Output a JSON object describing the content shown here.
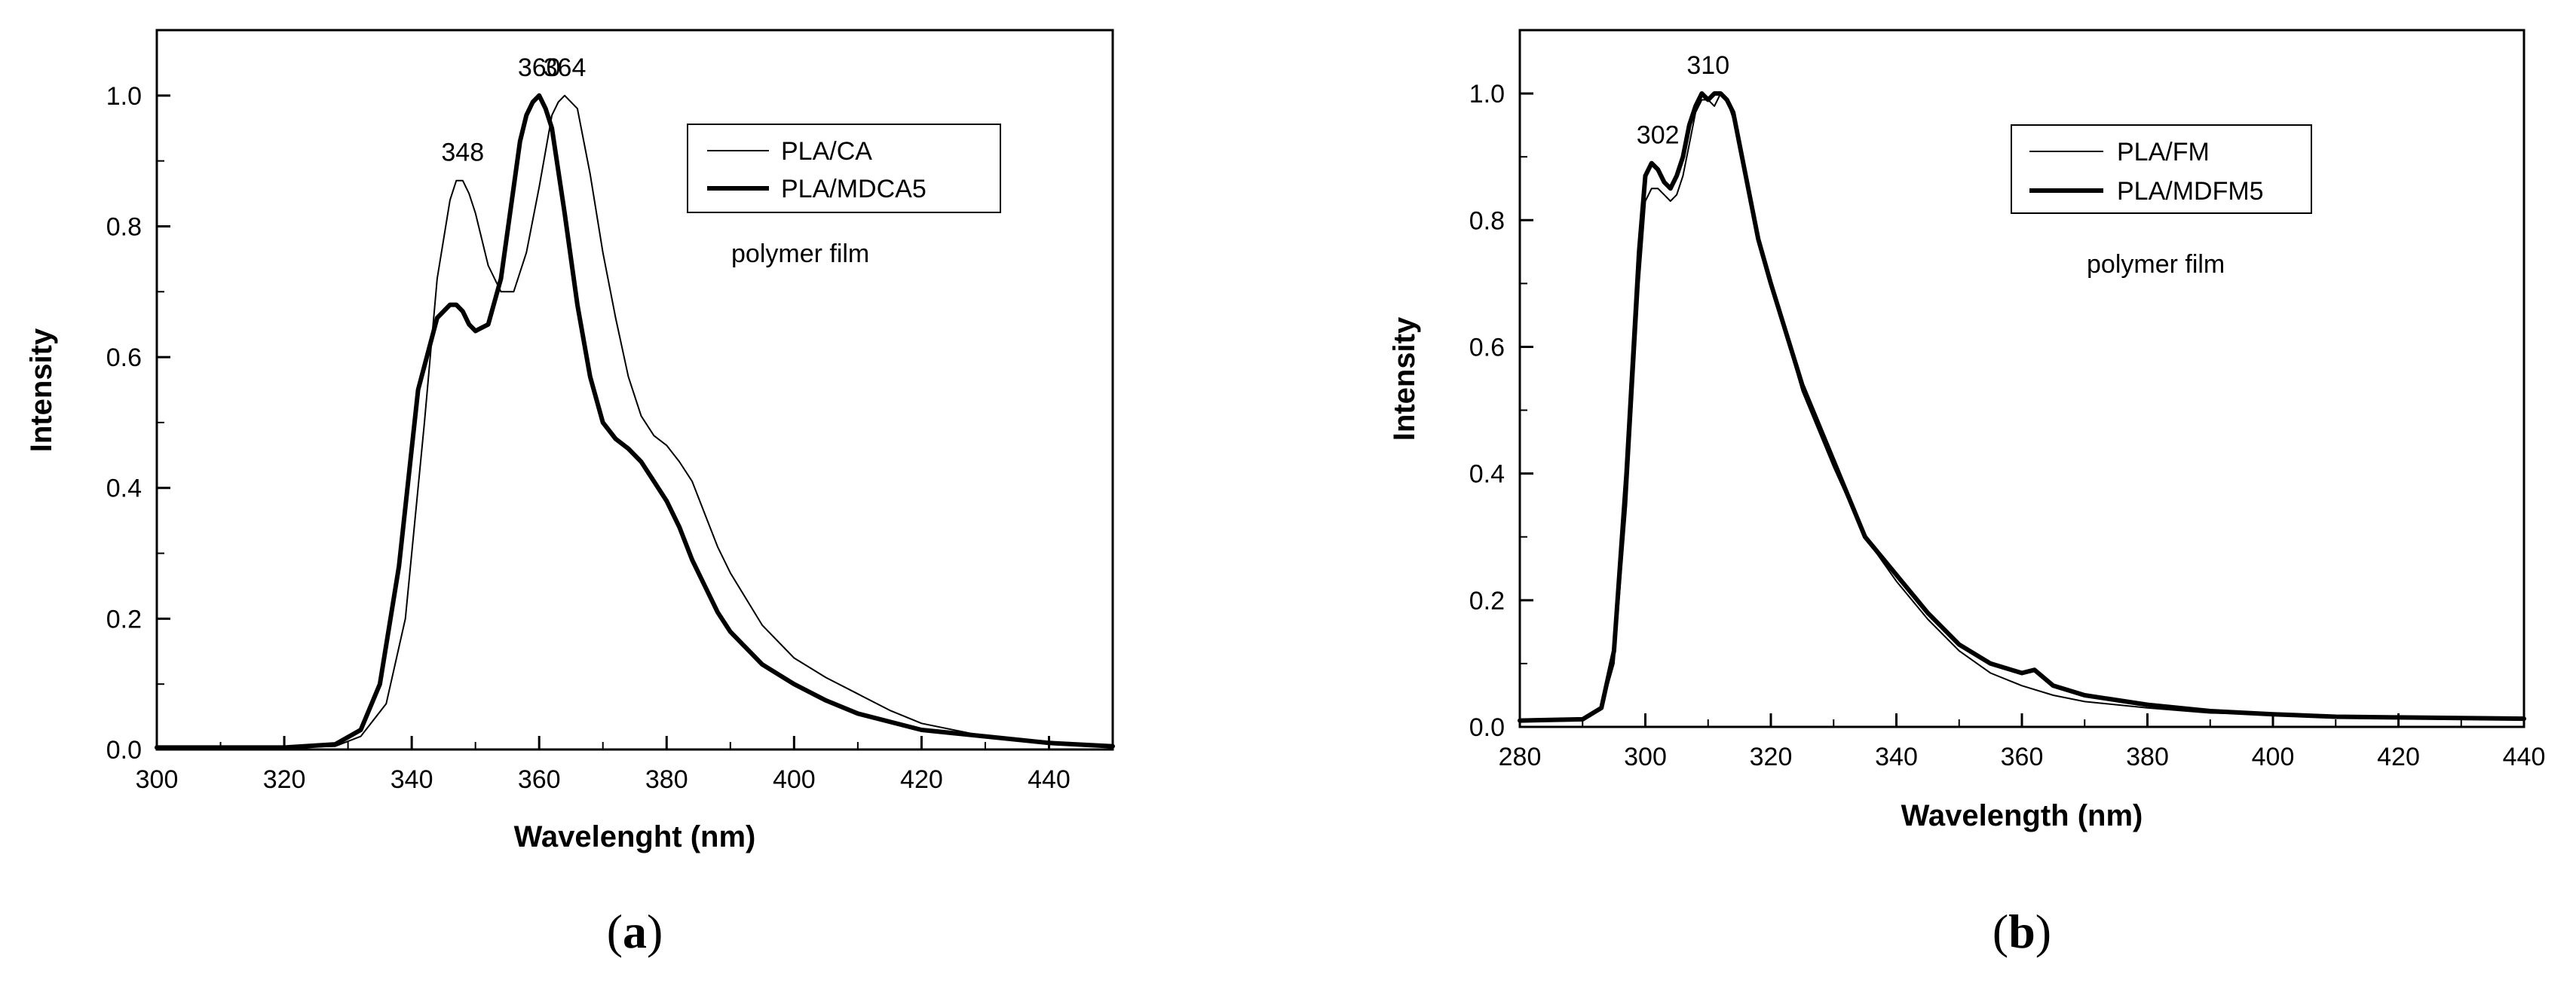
{
  "chart_data": [
    {
      "type": "line",
      "panel_label": "a",
      "title": "",
      "xlabel": "Wavelenght (nm)",
      "ylabel": "Intensity",
      "xlim": [
        300,
        450
      ],
      "ylim": [
        0,
        1.1
      ],
      "xticks": [
        300,
        320,
        340,
        360,
        380,
        400,
        420,
        440
      ],
      "yticks": [
        0.0,
        0.2,
        0.4,
        0.6,
        0.8,
        1.0
      ],
      "xtick_labels": [
        "300",
        "320",
        "340",
        "360",
        "380",
        "400",
        "420",
        "440"
      ],
      "ytick_labels": [
        "0.0",
        "0.2",
        "0.4",
        "0.6",
        "0.8",
        "1.0"
      ],
      "legend_position": "top-right",
      "grid": false,
      "annotation_text": "polymer film",
      "peak_labels": [
        {
          "text": "348",
          "x": 348,
          "y": 0.87
        },
        {
          "text": "360",
          "x": 360,
          "y": 1.0
        },
        {
          "text": "364",
          "x": 364,
          "y": 1.0
        }
      ],
      "series": [
        {
          "name": "PLA/CA",
          "weight": "thin",
          "x": [
            300,
            320,
            328,
            332,
            336,
            339,
            342,
            344,
            346,
            347,
            348,
            349,
            350,
            352,
            354,
            356,
            358,
            360,
            362,
            363,
            364,
            366,
            368,
            370,
            372,
            374,
            376,
            378,
            380,
            382,
            384,
            386,
            388,
            390,
            395,
            400,
            405,
            410,
            415,
            420,
            430,
            440,
            450
          ],
          "y": [
            0.003,
            0.003,
            0.005,
            0.02,
            0.07,
            0.2,
            0.5,
            0.72,
            0.84,
            0.87,
            0.87,
            0.85,
            0.82,
            0.74,
            0.7,
            0.7,
            0.76,
            0.86,
            0.97,
            0.99,
            1.0,
            0.98,
            0.88,
            0.76,
            0.66,
            0.57,
            0.51,
            0.48,
            0.465,
            0.44,
            0.41,
            0.36,
            0.31,
            0.27,
            0.19,
            0.14,
            0.11,
            0.085,
            0.06,
            0.04,
            0.02,
            0.01,
            0.005
          ]
        },
        {
          "name": "PLA/MDCA5",
          "weight": "thick",
          "x": [
            300,
            320,
            328,
            332,
            335,
            338,
            341,
            344,
            346,
            347,
            348,
            349,
            350,
            352,
            354,
            356,
            357,
            358,
            359,
            360,
            361,
            362,
            364,
            366,
            368,
            370,
            372,
            374,
            376,
            378,
            380,
            382,
            384,
            386,
            388,
            390,
            395,
            400,
            405,
            410,
            420,
            430,
            440,
            450
          ],
          "y": [
            0.003,
            0.003,
            0.008,
            0.03,
            0.1,
            0.28,
            0.55,
            0.66,
            0.68,
            0.68,
            0.67,
            0.65,
            0.64,
            0.65,
            0.72,
            0.86,
            0.93,
            0.97,
            0.99,
            1.0,
            0.98,
            0.95,
            0.82,
            0.68,
            0.57,
            0.5,
            0.475,
            0.46,
            0.44,
            0.41,
            0.38,
            0.34,
            0.29,
            0.25,
            0.21,
            0.18,
            0.13,
            0.1,
            0.075,
            0.055,
            0.03,
            0.02,
            0.01,
            0.005
          ]
        }
      ]
    },
    {
      "type": "line",
      "panel_label": "b",
      "title": "",
      "xlabel": "Wavelength (nm)",
      "ylabel": "Intensity",
      "xlim": [
        280,
        440
      ],
      "ylim": [
        0,
        1.1
      ],
      "xticks": [
        280,
        300,
        320,
        340,
        360,
        380,
        400,
        420,
        440
      ],
      "yticks": [
        0.0,
        0.2,
        0.4,
        0.6,
        0.8,
        1.0
      ],
      "xtick_labels": [
        "280",
        "300",
        "320",
        "340",
        "360",
        "380",
        "400",
        "420",
        "440"
      ],
      "ytick_labels": [
        "0.0",
        "0.2",
        "0.4",
        "0.6",
        "0.8",
        "1.0"
      ],
      "legend_position": "top-right",
      "grid": false,
      "annotation_text": "polymer film",
      "peak_labels": [
        {
          "text": "302",
          "x": 302,
          "y": 0.89
        },
        {
          "text": "310",
          "x": 310,
          "y": 1.0
        }
      ],
      "series": [
        {
          "name": "PLA/FM",
          "weight": "thin",
          "x": [
            280,
            290,
            293,
            295,
            297,
            299,
            300,
            301,
            302,
            303,
            304,
            305,
            306,
            307,
            308,
            309,
            310,
            311,
            312,
            313,
            314,
            316,
            318,
            320,
            325,
            330,
            335,
            340,
            345,
            350,
            355,
            360,
            365,
            370,
            380,
            390,
            400,
            410,
            420,
            430,
            440
          ],
          "y": [
            0.01,
            0.012,
            0.03,
            0.1,
            0.35,
            0.7,
            0.83,
            0.85,
            0.85,
            0.84,
            0.83,
            0.84,
            0.87,
            0.92,
            0.97,
            0.99,
            0.99,
            0.98,
            1.0,
            0.99,
            0.96,
            0.86,
            0.77,
            0.7,
            0.53,
            0.41,
            0.3,
            0.23,
            0.17,
            0.12,
            0.085,
            0.065,
            0.05,
            0.04,
            0.03,
            0.022,
            0.02,
            0.015,
            0.013,
            0.012,
            0.012
          ]
        },
        {
          "name": "PLA/MDFM5",
          "weight": "thick",
          "x": [
            280,
            290,
            293,
            295,
            297,
            299,
            300,
            301,
            302,
            303,
            304,
            305,
            306,
            307,
            308,
            309,
            310,
            311,
            312,
            313,
            314,
            316,
            318,
            320,
            325,
            330,
            335,
            340,
            345,
            350,
            355,
            360,
            362,
            365,
            370,
            380,
            390,
            400,
            410,
            420,
            430,
            440
          ],
          "y": [
            0.01,
            0.012,
            0.03,
            0.12,
            0.4,
            0.75,
            0.87,
            0.89,
            0.88,
            0.86,
            0.85,
            0.87,
            0.9,
            0.95,
            0.98,
            1.0,
            0.99,
            1.0,
            1.0,
            0.99,
            0.97,
            0.87,
            0.77,
            0.7,
            0.54,
            0.42,
            0.3,
            0.24,
            0.18,
            0.13,
            0.1,
            0.085,
            0.09,
            0.065,
            0.05,
            0.035,
            0.025,
            0.02,
            0.016,
            0.015,
            0.014,
            0.013
          ]
        }
      ]
    }
  ]
}
